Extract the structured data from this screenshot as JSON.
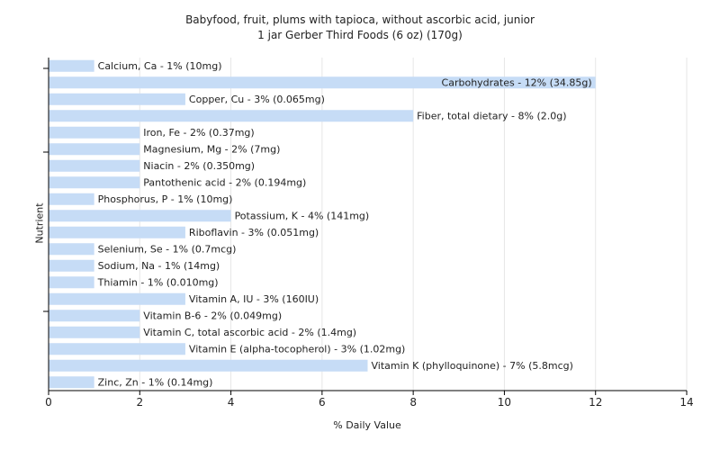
{
  "chart_data": {
    "type": "bar",
    "orientation": "horizontal",
    "title": "Babyfood, fruit, plums with tapioca, without ascorbic acid, junior",
    "subtitle": "1 jar Gerber Third Foods (6 oz) (170g)",
    "xlabel": "% Daily Value",
    "ylabel": "Nutrient",
    "xlim": [
      0,
      14
    ],
    "xticks": [
      0,
      2,
      4,
      6,
      8,
      10,
      12,
      14
    ],
    "grid": true,
    "bar_color": "#c6dcf6",
    "categories": [
      "Calcium, Ca",
      "Carbohydrates",
      "Copper, Cu",
      "Fiber, total dietary",
      "Iron, Fe",
      "Magnesium, Mg",
      "Niacin",
      "Pantothenic acid",
      "Phosphorus, P",
      "Potassium, K",
      "Riboflavin",
      "Selenium, Se",
      "Sodium, Na",
      "Thiamin",
      "Vitamin A, IU",
      "Vitamin B-6",
      "Vitamin C, total ascorbic acid",
      "Vitamin E (alpha-tocopherol)",
      "Vitamin K (phylloquinone)",
      "Zinc, Zn"
    ],
    "values": [
      1,
      12,
      3,
      8,
      2,
      2,
      2,
      2,
      1,
      4,
      3,
      1,
      1,
      1,
      3,
      2,
      2,
      3,
      7,
      1
    ],
    "labels": [
      "Calcium, Ca - 1% (10mg)",
      "Carbohydrates - 12% (34.85g)",
      "Copper, Cu - 3% (0.065mg)",
      "Fiber, total dietary - 8% (2.0g)",
      "Iron, Fe - 2% (0.37mg)",
      "Magnesium, Mg - 2% (7mg)",
      "Niacin - 2% (0.350mg)",
      "Pantothenic acid - 2% (0.194mg)",
      "Phosphorus, P - 1% (10mg)",
      "Potassium, K - 4% (141mg)",
      "Riboflavin - 3% (0.051mg)",
      "Selenium, Se - 1% (0.7mcg)",
      "Sodium, Na - 1% (14mg)",
      "Thiamin - 1% (0.010mg)",
      "Vitamin A, IU - 3% (160IU)",
      "Vitamin B-6 - 2% (0.049mg)",
      "Vitamin C, total ascorbic acid - 2% (1.4mg)",
      "Vitamin E (alpha-tocopherol) - 3% (1.02mg)",
      "Vitamin K (phylloquinone) - 7% (5.8mcg)",
      "Zinc, Zn - 1% (0.14mg)"
    ]
  }
}
